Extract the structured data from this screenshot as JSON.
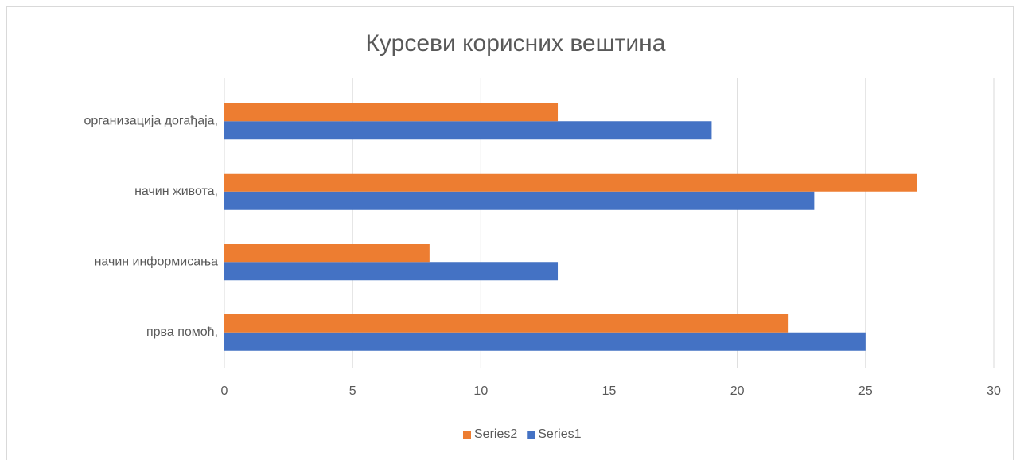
{
  "chart_data": {
    "type": "bar",
    "orientation": "horizontal",
    "title": "Курсеви корисних вештина",
    "categories": [
      "прва помоћ,",
      "начин информисања",
      "начин живота,",
      "организација догађаја,"
    ],
    "series": [
      {
        "name": "Series1",
        "color": "#4472c4",
        "values": [
          25,
          13,
          23,
          19
        ]
      },
      {
        "name": "Series2",
        "color": "#ed7d31",
        "values": [
          22,
          8,
          27,
          13
        ]
      }
    ],
    "xlim": [
      0,
      30
    ],
    "xticks": [
      0,
      5,
      10,
      15,
      20,
      25,
      30
    ],
    "grid": true,
    "legend": "bottom"
  }
}
